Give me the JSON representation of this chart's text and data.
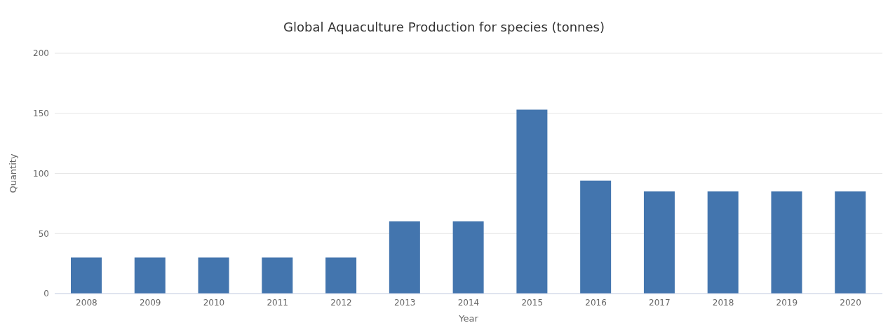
{
  "chart_data": {
    "type": "bar",
    "title": "Global Aquaculture Production for species (tonnes)",
    "xlabel": "Year",
    "ylabel": "Quantity",
    "categories": [
      "2008",
      "2009",
      "2010",
      "2011",
      "2012",
      "2013",
      "2014",
      "2015",
      "2016",
      "2017",
      "2018",
      "2019",
      "2020"
    ],
    "values": [
      30,
      30,
      30,
      30,
      30,
      60,
      60,
      153,
      94,
      85,
      85,
      85,
      85
    ],
    "color": "#4375ae",
    "ylim": [
      0,
      200
    ],
    "yticks": [
      0,
      50,
      100,
      150,
      200
    ],
    "grid": "y",
    "legend": false
  }
}
